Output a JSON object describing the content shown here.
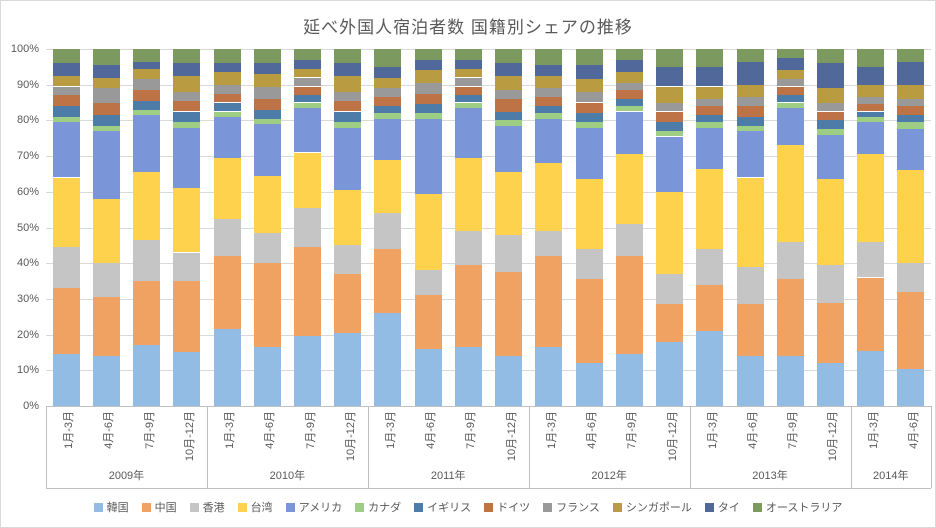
{
  "chart_data": {
    "type": "bar",
    "stacked": "percent",
    "title": "延べ外国人宿泊者数 国籍別シェアの推移",
    "ylabel": "",
    "xlabel": "",
    "ylim": [
      0,
      100
    ],
    "grid": true,
    "legend_position": "bottom",
    "y_ticks": [
      "0%",
      "10%",
      "20%",
      "30%",
      "40%",
      "50%",
      "60%",
      "70%",
      "80%",
      "90%",
      "100%"
    ],
    "groups": [
      {
        "year": "2009年",
        "quarters": [
          "1月-3月",
          "4月-6月",
          "7月-9月",
          "10月-12月"
        ]
      },
      {
        "year": "2010年",
        "quarters": [
          "1月-3月",
          "4月-6月",
          "7月-9月",
          "10月-12月"
        ]
      },
      {
        "year": "2011年",
        "quarters": [
          "1月-3月",
          "4月-6月",
          "7月-9月",
          "10月-12月"
        ]
      },
      {
        "year": "2012年",
        "quarters": [
          "1月-3月",
          "4月-6月",
          "7月-9月",
          "10月-12月"
        ]
      },
      {
        "year": "2013年",
        "quarters": [
          "1月-3月",
          "4月-6月",
          "7月-9月",
          "10月-12月"
        ]
      },
      {
        "year": "2014年",
        "quarters": [
          "1月-3月",
          "4月-6月"
        ]
      }
    ],
    "series": [
      {
        "name": "韓国",
        "color": "#92BCE4",
        "values": [
          14.5,
          14,
          17,
          15,
          21.5,
          16.5,
          19.5,
          20.5,
          26,
          16,
          16.5,
          14,
          16.5,
          12,
          14.5,
          18,
          21,
          14,
          14,
          12,
          15.5,
          10.5
        ]
      },
      {
        "name": "中国",
        "color": "#F0A263",
        "values": [
          18.5,
          16.5,
          18,
          20,
          20.5,
          23.5,
          25,
          16.5,
          18,
          15,
          23,
          23.5,
          25.5,
          23.5,
          27.5,
          10.5,
          13,
          14.5,
          21.5,
          17,
          20.5,
          21.5
        ]
      },
      {
        "name": "香港",
        "color": "#C5C5C5",
        "values": [
          11.5,
          9.5,
          11.5,
          8,
          10.5,
          8.5,
          11,
          8,
          10,
          7,
          9.5,
          10.5,
          7,
          8.5,
          9,
          8.5,
          10,
          10.5,
          10.5,
          10.5,
          10,
          8
        ]
      },
      {
        "name": "台湾",
        "color": "#FFD24D",
        "values": [
          19.5,
          18,
          19,
          18,
          17,
          16,
          15.5,
          15.5,
          15,
          21.5,
          20.5,
          17.5,
          19,
          19.5,
          19.5,
          23,
          22.5,
          25,
          27,
          24,
          24.5,
          26
        ]
      },
      {
        "name": "アメリカ",
        "color": "#7B96D8",
        "values": [
          15.5,
          19,
          16,
          17,
          11.5,
          14.5,
          12.5,
          17.5,
          11.5,
          21,
          14,
          13,
          12.5,
          14.5,
          12,
          15.5,
          11.5,
          13,
          10.5,
          12.5,
          9,
          11.5
        ]
      },
      {
        "name": "カナダ",
        "color": "#9ECD84",
        "values": [
          1.5,
          1.5,
          1.5,
          1.5,
          1.5,
          1.5,
          1.5,
          1.5,
          1.5,
          1.5,
          1.5,
          1.5,
          1.5,
          1.5,
          1.5,
          1.5,
          1.5,
          1.5,
          1.5,
          1.5,
          1.5,
          2
        ]
      },
      {
        "name": "イギリス",
        "color": "#4E7CA8",
        "values": [
          3,
          3,
          2.5,
          3,
          2.5,
          2.5,
          2,
          3,
          2,
          2.5,
          2,
          2.5,
          2,
          2.5,
          2,
          2.5,
          2,
          2.5,
          2,
          2.5,
          1.5,
          2
        ]
      },
      {
        "name": "ドイツ",
        "color": "#BD7345",
        "values": [
          3,
          3.5,
          3,
          3,
          2.5,
          3,
          2.5,
          3,
          2.5,
          3,
          2.5,
          3.5,
          2.5,
          3,
          2.5,
          3,
          2.5,
          3,
          2.5,
          2.5,
          2,
          2.5
        ]
      },
      {
        "name": "フランス",
        "color": "#999999",
        "values": [
          2.5,
          4,
          3,
          2.5,
          2.5,
          3.5,
          2.5,
          2.5,
          2.5,
          3,
          2.5,
          2.5,
          2.5,
          3,
          2,
          2.5,
          2,
          2.5,
          2,
          2.5,
          2,
          2
        ]
      },
      {
        "name": "シンガポール",
        "color": "#B99C42",
        "values": [
          3,
          3,
          3,
          4.5,
          3.5,
          3.5,
          2.5,
          4.5,
          3,
          3.5,
          2.5,
          4,
          3.5,
          3.5,
          3,
          4.5,
          3.5,
          3.5,
          2.5,
          4,
          3.5,
          4
        ]
      },
      {
        "name": "タイ",
        "color": "#51689B",
        "values": [
          3.5,
          3.5,
          2,
          3.5,
          2.5,
          3,
          2.5,
          3.5,
          3,
          3,
          2.5,
          3.5,
          3,
          4,
          3.5,
          5.5,
          5.5,
          6.5,
          3.5,
          7,
          5,
          6.5
        ]
      },
      {
        "name": "オーストラリア",
        "color": "#7C9960",
        "values": [
          4,
          4.5,
          3.5,
          4,
          4,
          4,
          3,
          4,
          5,
          3,
          3,
          4,
          4.5,
          4.5,
          3,
          5,
          5,
          3.5,
          2.5,
          4,
          5,
          3.5
        ]
      }
    ]
  }
}
